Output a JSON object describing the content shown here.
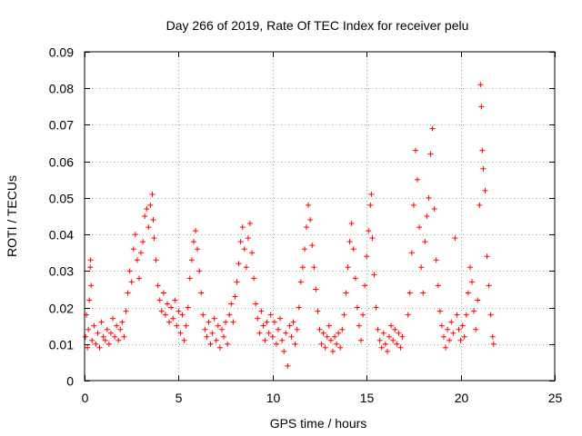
{
  "chart_data": {
    "type": "scatter",
    "title": "Day 266 of 2019, Rate Of TEC Index for receiver pelu",
    "xlabel": "GPS time / hours",
    "ylabel": "ROTI / TECUs",
    "xlim": [
      0,
      25
    ],
    "ylim": [
      0,
      0.09
    ],
    "x_ticks": [
      0,
      5,
      10,
      15,
      20,
      25
    ],
    "x_tick_labels": [
      "0",
      "5",
      "10",
      "15",
      "20",
      "25"
    ],
    "y_ticks": [
      0,
      0.01,
      0.02,
      0.03,
      0.04,
      0.05,
      0.06,
      0.07,
      0.08,
      0.09
    ],
    "y_tick_labels": [
      "0",
      "0.01",
      "0.02",
      "0.03",
      "0.04",
      "0.05",
      "0.06",
      "0.07",
      "0.08",
      "0.09"
    ],
    "grid": true,
    "marker": "+",
    "marker_color": "#ff0000",
    "series": [
      {
        "name": "ROTI",
        "points": [
          [
            0.05,
            0.012
          ],
          [
            0.1,
            0.018
          ],
          [
            0.15,
            0.009
          ],
          [
            0.2,
            0.014
          ],
          [
            0.25,
            0.022
          ],
          [
            0.3,
            0.031
          ],
          [
            0.32,
            0.033
          ],
          [
            0.35,
            0.026
          ],
          [
            0.4,
            0.011
          ],
          [
            0.5,
            0.015
          ],
          [
            0.6,
            0.01
          ],
          [
            0.7,
            0.013
          ],
          [
            0.8,
            0.009
          ],
          [
            0.9,
            0.016
          ],
          [
            1.0,
            0.012
          ],
          [
            1.1,
            0.011
          ],
          [
            1.2,
            0.014
          ],
          [
            1.3,
            0.01
          ],
          [
            1.4,
            0.013
          ],
          [
            1.5,
            0.017
          ],
          [
            1.6,
            0.012
          ],
          [
            1.7,
            0.015
          ],
          [
            1.8,
            0.011
          ],
          [
            1.9,
            0.014
          ],
          [
            2.0,
            0.016
          ],
          [
            2.1,
            0.012
          ],
          [
            2.2,
            0.019
          ],
          [
            2.3,
            0.024
          ],
          [
            2.4,
            0.03
          ],
          [
            2.5,
            0.027
          ],
          [
            2.6,
            0.036
          ],
          [
            2.7,
            0.04
          ],
          [
            2.8,
            0.033
          ],
          [
            2.9,
            0.028
          ],
          [
            3.0,
            0.035
          ],
          [
            3.1,
            0.038
          ],
          [
            3.2,
            0.045
          ],
          [
            3.3,
            0.047
          ],
          [
            3.4,
            0.042
          ],
          [
            3.5,
            0.048
          ],
          [
            3.6,
            0.051
          ],
          [
            3.65,
            0.044
          ],
          [
            3.7,
            0.039
          ],
          [
            3.8,
            0.033
          ],
          [
            3.9,
            0.026
          ],
          [
            4.0,
            0.022
          ],
          [
            4.1,
            0.019
          ],
          [
            4.2,
            0.024
          ],
          [
            4.3,
            0.018
          ],
          [
            4.4,
            0.021
          ],
          [
            4.5,
            0.016
          ],
          [
            4.6,
            0.02
          ],
          [
            4.7,
            0.017
          ],
          [
            4.8,
            0.022
          ],
          [
            4.9,
            0.015
          ],
          [
            5.0,
            0.019
          ],
          [
            5.1,
            0.013
          ],
          [
            5.2,
            0.018
          ],
          [
            5.3,
            0.011
          ],
          [
            5.4,
            0.015
          ],
          [
            5.5,
            0.02
          ],
          [
            5.6,
            0.028
          ],
          [
            5.7,
            0.033
          ],
          [
            5.8,
            0.038
          ],
          [
            5.9,
            0.041
          ],
          [
            6.0,
            0.036
          ],
          [
            6.1,
            0.03
          ],
          [
            6.2,
            0.024
          ],
          [
            6.3,
            0.018
          ],
          [
            6.4,
            0.014
          ],
          [
            6.5,
            0.012
          ],
          [
            6.6,
            0.016
          ],
          [
            6.7,
            0.01
          ],
          [
            6.8,
            0.013
          ],
          [
            6.9,
            0.017
          ],
          [
            7.0,
            0.011
          ],
          [
            7.1,
            0.015
          ],
          [
            7.2,
            0.009
          ],
          [
            7.3,
            0.014
          ],
          [
            7.4,
            0.012
          ],
          [
            7.5,
            0.016
          ],
          [
            7.6,
            0.01
          ],
          [
            7.7,
            0.018
          ],
          [
            7.8,
            0.021
          ],
          [
            7.9,
            0.016
          ],
          [
            8.0,
            0.023
          ],
          [
            8.1,
            0.027
          ],
          [
            8.2,
            0.032
          ],
          [
            8.3,
            0.038
          ],
          [
            8.4,
            0.042
          ],
          [
            8.5,
            0.036
          ],
          [
            8.6,
            0.031
          ],
          [
            8.7,
            0.039
          ],
          [
            8.8,
            0.043
          ],
          [
            8.9,
            0.035
          ],
          [
            9.0,
            0.028
          ],
          [
            9.1,
            0.021
          ],
          [
            9.2,
            0.017
          ],
          [
            9.3,
            0.013
          ],
          [
            9.4,
            0.019
          ],
          [
            9.5,
            0.015
          ],
          [
            9.6,
            0.011
          ],
          [
            9.7,
            0.016
          ],
          [
            9.8,
            0.013
          ],
          [
            9.9,
            0.018
          ],
          [
            10.0,
            0.012
          ],
          [
            10.1,
            0.016
          ],
          [
            10.2,
            0.01
          ],
          [
            10.3,
            0.014
          ],
          [
            10.4,
            0.017
          ],
          [
            10.5,
            0.011
          ],
          [
            10.6,
            0.008
          ],
          [
            10.7,
            0.013
          ],
          [
            10.8,
            0.004
          ],
          [
            10.9,
            0.015
          ],
          [
            11.0,
            0.012
          ],
          [
            11.1,
            0.016
          ],
          [
            11.2,
            0.01
          ],
          [
            11.3,
            0.014
          ],
          [
            11.4,
            0.02
          ],
          [
            11.5,
            0.027
          ],
          [
            11.6,
            0.031
          ],
          [
            11.7,
            0.036
          ],
          [
            11.8,
            0.042
          ],
          [
            11.9,
            0.048
          ],
          [
            12.0,
            0.044
          ],
          [
            12.1,
            0.037
          ],
          [
            12.2,
            0.031
          ],
          [
            12.3,
            0.025
          ],
          [
            12.4,
            0.019
          ],
          [
            12.5,
            0.014
          ],
          [
            12.6,
            0.01
          ],
          [
            12.7,
            0.013
          ],
          [
            12.8,
            0.009
          ],
          [
            12.9,
            0.012
          ],
          [
            13.0,
            0.015
          ],
          [
            13.1,
            0.011
          ],
          [
            13.2,
            0.008
          ],
          [
            13.3,
            0.012
          ],
          [
            13.4,
            0.01
          ],
          [
            13.5,
            0.013
          ],
          [
            13.6,
            0.009
          ],
          [
            13.7,
            0.014
          ],
          [
            13.8,
            0.018
          ],
          [
            13.9,
            0.024
          ],
          [
            14.0,
            0.031
          ],
          [
            14.1,
            0.038
          ],
          [
            14.2,
            0.043
          ],
          [
            14.3,
            0.036
          ],
          [
            14.4,
            0.028
          ],
          [
            14.5,
            0.02
          ],
          [
            14.6,
            0.015
          ],
          [
            14.7,
            0.011
          ],
          [
            14.8,
            0.018
          ],
          [
            14.9,
            0.026
          ],
          [
            15.0,
            0.034
          ],
          [
            15.1,
            0.041
          ],
          [
            15.2,
            0.048
          ],
          [
            15.25,
            0.051
          ],
          [
            15.3,
            0.039
          ],
          [
            15.4,
            0.029
          ],
          [
            15.5,
            0.02
          ],
          [
            15.6,
            0.014
          ],
          [
            15.7,
            0.011
          ],
          [
            15.8,
            0.009
          ],
          [
            15.9,
            0.013
          ],
          [
            16.0,
            0.01
          ],
          [
            16.1,
            0.008
          ],
          [
            16.2,
            0.012
          ],
          [
            16.3,
            0.015
          ],
          [
            16.4,
            0.011
          ],
          [
            16.5,
            0.014
          ],
          [
            16.6,
            0.01
          ],
          [
            16.7,
            0.013
          ],
          [
            16.8,
            0.009
          ],
          [
            16.9,
            0.012
          ],
          [
            17.2,
            0.018
          ],
          [
            17.3,
            0.024
          ],
          [
            17.4,
            0.035
          ],
          [
            17.5,
            0.048
          ],
          [
            17.6,
            0.063
          ],
          [
            17.7,
            0.055
          ],
          [
            17.8,
            0.042
          ],
          [
            17.9,
            0.031
          ],
          [
            18.0,
            0.024
          ],
          [
            18.1,
            0.038
          ],
          [
            18.2,
            0.045
          ],
          [
            18.3,
            0.05
          ],
          [
            18.4,
            0.062
          ],
          [
            18.5,
            0.069
          ],
          [
            18.6,
            0.047
          ],
          [
            18.7,
            0.033
          ],
          [
            18.8,
            0.026
          ],
          [
            18.9,
            0.019
          ],
          [
            19.0,
            0.015
          ],
          [
            19.1,
            0.012
          ],
          [
            19.2,
            0.009
          ],
          [
            19.3,
            0.014
          ],
          [
            19.4,
            0.011
          ],
          [
            19.5,
            0.016
          ],
          [
            19.6,
            0.013
          ],
          [
            19.7,
            0.039
          ],
          [
            19.8,
            0.018
          ],
          [
            19.9,
            0.014
          ],
          [
            20.0,
            0.011
          ],
          [
            20.1,
            0.015
          ],
          [
            20.2,
            0.012
          ],
          [
            20.3,
            0.018
          ],
          [
            20.4,
            0.024
          ],
          [
            20.5,
            0.031
          ],
          [
            20.6,
            0.027
          ],
          [
            20.7,
            0.019
          ],
          [
            20.8,
            0.014
          ],
          [
            20.9,
            0.022
          ],
          [
            21.0,
            0.048
          ],
          [
            21.05,
            0.081
          ],
          [
            21.1,
            0.075
          ],
          [
            21.15,
            0.063
          ],
          [
            21.2,
            0.058
          ],
          [
            21.3,
            0.052
          ],
          [
            21.4,
            0.034
          ],
          [
            21.5,
            0.026
          ],
          [
            21.6,
            0.018
          ],
          [
            21.7,
            0.012
          ],
          [
            21.75,
            0.01
          ]
        ]
      }
    ]
  }
}
